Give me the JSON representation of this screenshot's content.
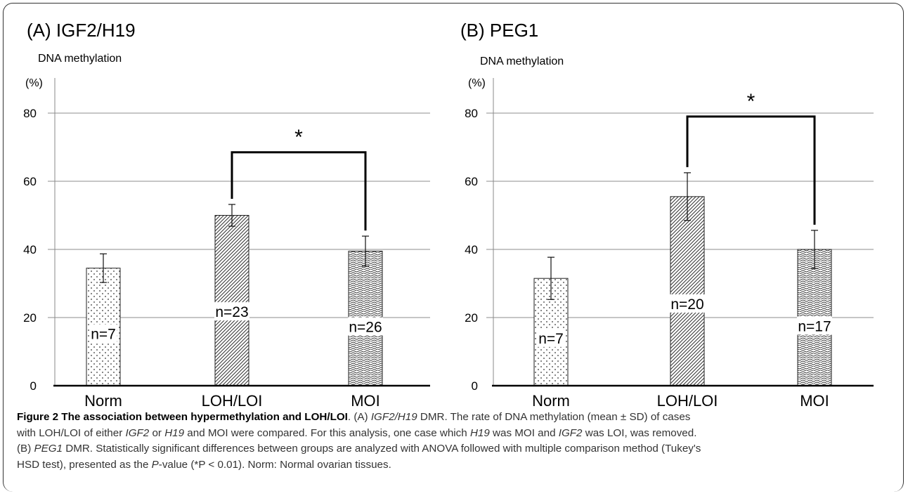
{
  "chart_data": [
    {
      "type": "bar",
      "title": "(A) IGF2/H19",
      "ylabel": "DNA methylation",
      "yunit": "(%)",
      "ylim": [
        0,
        80
      ],
      "yticks": [
        "0",
        "20",
        "40",
        "60",
        "80"
      ],
      "categories": [
        "Norm",
        "LOH/LOI",
        "MOI"
      ],
      "values": [
        34.5,
        50,
        39.5
      ],
      "errors": [
        4.2,
        3.2,
        4.4
      ],
      "labels": [
        "n=7",
        "n=23",
        "n=26"
      ],
      "patterns": [
        "dots",
        "diagonal",
        "wavy"
      ],
      "significance": {
        "from": 1,
        "to": 2,
        "symbol": "*",
        "bracket_y": 68.5
      },
      "grid": true
    },
    {
      "type": "bar",
      "title": "(B) PEG1",
      "ylabel": "DNA methylation",
      "yunit": "(%)",
      "ylim": [
        0,
        80
      ],
      "yticks": [
        "0",
        "20",
        "40",
        "60",
        "80"
      ],
      "categories": [
        "Norm",
        "LOH/LOI",
        "MOI"
      ],
      "values": [
        31.5,
        55.5,
        40
      ],
      "errors": [
        6.2,
        7.0,
        5.6
      ],
      "labels": [
        "n=7",
        "n=20",
        "n=17"
      ],
      "patterns": [
        "dots",
        "diagonal",
        "wavy"
      ],
      "significance": {
        "from": 1,
        "to": 2,
        "symbol": "*",
        "bracket_y": 79
      },
      "grid": true
    }
  ],
  "caption": {
    "fig_label": "Figure 2 The association between hypermethylation and LOH/LOI",
    "part_a_prefix": ". (A) ",
    "gene_igf2_h19": "IGF2/H19",
    "l1_dmr": " DMR. The rate of DNA methylation (mean ± SD) of cases",
    "l2_a": "with LOH/LOI of either ",
    "gene_igf2": "IGF2",
    "l2_b": " or ",
    "gene_h19": "H19",
    "l2_c": " and MOI were compared. For this analysis, one case which ",
    "gene_h19_b": "H19",
    "l2_d": " was MOI and ",
    "gene_igf2_b": "IGF2",
    "l2_e": " was LOI, was removed.",
    "l3_a": "(B) ",
    "gene_peg1": "PEG1",
    "l3_b": " DMR. Statistically significant differences between groups are analyzed with ANOVA followed with multiple comparison method (Tukey's",
    "l4_a": "HSD test), presented as the ",
    "p_italic": "P",
    "l4_b": "-value (*P < 0.01). Norm: Normal ovarian tissues."
  }
}
